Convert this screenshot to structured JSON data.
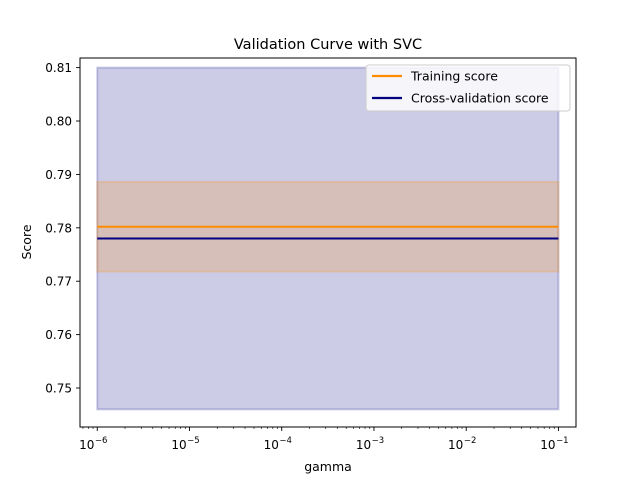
{
  "chart_data": {
    "type": "line",
    "title": "Validation Curve with SVC",
    "xlabel": "gamma",
    "ylabel": "Score",
    "xscale": "log",
    "xlim": [
      6.5e-07,
      0.155
    ],
    "ylim": [
      0.7427,
      0.8118
    ],
    "x": [
      1e-06,
      1e-05,
      0.0001,
      0.001,
      0.01,
      0.1
    ],
    "x_ticks": [
      {
        "exp": -6,
        "base": "10",
        "power": "−6"
      },
      {
        "exp": -5,
        "base": "10",
        "power": "−5"
      },
      {
        "exp": -4,
        "base": "10",
        "power": "−4"
      },
      {
        "exp": -3,
        "base": "10",
        "power": "−3"
      },
      {
        "exp": -2,
        "base": "10",
        "power": "−2"
      },
      {
        "exp": -1,
        "base": "10",
        "power": "−1"
      }
    ],
    "y_ticks": [
      0.75,
      0.76,
      0.77,
      0.78,
      0.79,
      0.8,
      0.81
    ],
    "y_tick_labels": [
      "0.75",
      "0.76",
      "0.77",
      "0.78",
      "0.79",
      "0.80",
      "0.81"
    ],
    "legend_position": "top-right",
    "grid": false,
    "series": [
      {
        "name": "Training score",
        "color": "#ff8c00",
        "values": [
          0.7802,
          0.7802,
          0.7802,
          0.7802,
          0.7802,
          0.7802
        ],
        "band_lower": [
          0.7718,
          0.7718,
          0.7718,
          0.7718,
          0.7718,
          0.7718
        ],
        "band_upper": [
          0.7886,
          0.7886,
          0.7886,
          0.7886,
          0.7886,
          0.7886
        ],
        "band_color": "#ff8c00"
      },
      {
        "name": "Cross-validation score",
        "color": "#000080",
        "values": [
          0.778,
          0.778,
          0.778,
          0.778,
          0.778,
          0.778
        ],
        "band_lower": [
          0.746,
          0.746,
          0.746,
          0.746,
          0.746,
          0.746
        ],
        "band_upper": [
          0.81,
          0.81,
          0.81,
          0.81,
          0.81,
          0.81
        ],
        "band_color": "#000080"
      }
    ]
  }
}
